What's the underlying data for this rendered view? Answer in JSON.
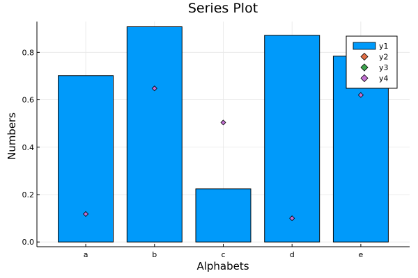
{
  "chart_data": {
    "type": "bar",
    "title": "Series Plot",
    "xlabel": "Alphabets",
    "ylabel": "Numbers",
    "categories": [
      "a",
      "b",
      "c",
      "d",
      "e"
    ],
    "yticks": [
      "0.0",
      "0.2",
      "0.4",
      "0.6",
      "0.8"
    ],
    "ylim": [
      -0.02,
      0.93
    ],
    "grid": true,
    "legend_position": "top-right",
    "series": [
      {
        "name": "y1",
        "kind": "bar",
        "color": "#009AFA",
        "values": [
          0.702,
          0.908,
          0.224,
          0.872,
          0.784
        ]
      },
      {
        "name": "y2",
        "kind": "scatter",
        "marker": "diamond",
        "color": "#E26F46",
        "values": [
          null,
          null,
          null,
          null,
          null
        ]
      },
      {
        "name": "y3",
        "kind": "scatter",
        "marker": "diamond",
        "color": "#3DA44D",
        "values": [
          null,
          null,
          null,
          null,
          null
        ]
      },
      {
        "name": "y4",
        "kind": "scatter",
        "marker": "diamond",
        "color": "#C371D2",
        "values": [
          0.118,
          0.648,
          0.504,
          0.1,
          0.62
        ]
      }
    ]
  }
}
